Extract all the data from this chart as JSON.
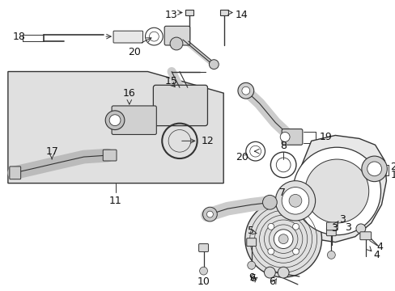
{
  "bg_color": "#ffffff",
  "shaded_box_color": "#e0e0e0",
  "line_color": "#333333",
  "text_color": "#111111",
  "fs": 9.0,
  "fig_width": 4.89,
  "fig_height": 3.6,
  "dpi": 100
}
